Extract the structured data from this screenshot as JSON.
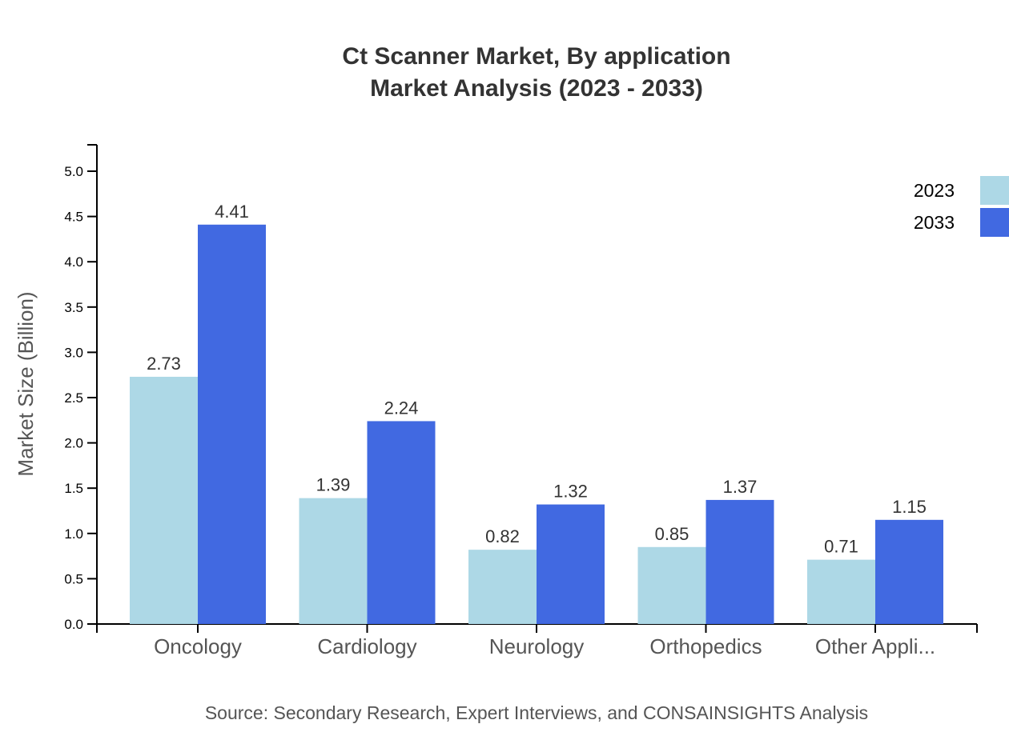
{
  "chart_data": {
    "type": "bar",
    "title": "Ct Scanner Market, By application",
    "subtitle": "Market Analysis (2023 - 2033)",
    "ylabel": "Market Size (Billion)",
    "xlabel": "",
    "ylim": [
      0,
      5.3
    ],
    "yticks": [
      "0.0",
      "0.5",
      "1.0",
      "1.5",
      "2.0",
      "2.5",
      "3.0",
      "3.5",
      "4.0",
      "4.5",
      "5.0"
    ],
    "categories": [
      "Oncology",
      "Cardiology",
      "Neurology",
      "Orthopedics",
      "Other Appli..."
    ],
    "series": [
      {
        "name": "2023",
        "color": "#add8e6",
        "values": [
          2.73,
          1.39,
          0.82,
          0.85,
          0.71
        ],
        "labels": [
          "2.73",
          "1.39",
          "0.82",
          "0.85",
          "0.71"
        ]
      },
      {
        "name": "2033",
        "color": "#4169e1",
        "values": [
          4.41,
          2.24,
          1.32,
          1.37,
          1.15
        ],
        "labels": [
          "4.41",
          "2.24",
          "1.32",
          "1.37",
          "1.15"
        ]
      }
    ],
    "grid": false,
    "legend": "top-right",
    "source": "Source: Secondary Research, Expert Interviews, and CONSAINSIGHTS Analysis"
  }
}
